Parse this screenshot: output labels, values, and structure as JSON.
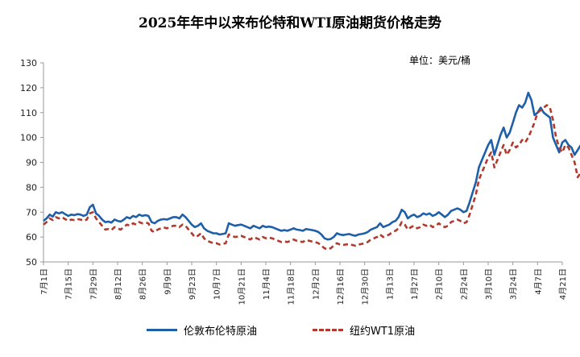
{
  "chart_data": {
    "type": "line",
    "title": "2025年年中以来布伦特和WTI原油期货价格走势",
    "unit_label": "单位：美元/桶",
    "ylim": [
      50,
      130
    ],
    "yticks": [
      50,
      60,
      70,
      80,
      90,
      100,
      110,
      120,
      130
    ],
    "grid": false,
    "legend_position": "bottom",
    "x_tick_labels": [
      "7月1日",
      "7月15日",
      "7月29日",
      "8月12日",
      "8月26日",
      "9月9日",
      "9月23日",
      "10月7日",
      "10月21日",
      "11月4日",
      "11月18日",
      "12月2日",
      "12月16日",
      "12月30日",
      "1月13日",
      "1月27日",
      "2月10日",
      "2月24日",
      "3月10日",
      "3月24日",
      "4月7日",
      "4月21日"
    ],
    "series": [
      {
        "name": "伦敦布伦特原油",
        "color": "#1f5fa8",
        "style": "solid",
        "values": [
          66.5,
          67.5,
          69,
          68.2,
          70,
          69.5,
          70,
          69.2,
          68.5,
          69,
          68.8,
          69.2,
          69,
          68.5,
          69,
          72,
          73,
          69.5,
          68.5,
          67,
          66,
          66.2,
          65.8,
          67,
          66.5,
          66.2,
          67,
          68,
          67.5,
          68.5,
          68,
          69,
          68.5,
          68.8,
          68.5,
          66,
          65.5,
          66.5,
          67,
          67.2,
          67,
          67.5,
          68,
          68,
          67.5,
          69,
          68,
          66.5,
          65,
          64,
          64.5,
          65.5,
          63.5,
          62.5,
          62,
          61.5,
          61.5,
          61,
          61.2,
          61.5,
          65.5,
          65,
          64.5,
          64.8,
          65,
          64.5,
          64,
          63.5,
          64.5,
          64,
          63.5,
          64.5,
          64,
          64.2,
          64,
          63.5,
          63,
          62.5,
          62.8,
          62.5,
          63,
          63.5,
          63,
          62.8,
          62.5,
          63.2,
          63,
          62.8,
          62.5,
          62,
          61,
          59.5,
          59,
          59.2,
          60,
          61.5,
          61,
          60.8,
          61,
          61.2,
          60.8,
          60.5,
          61,
          61.2,
          61.5,
          62,
          63,
          63.5,
          64,
          65.5,
          64,
          64.5,
          65,
          66,
          66.5,
          68,
          71,
          70,
          67.5,
          68.5,
          69,
          68,
          68.5,
          69.5,
          69,
          69.5,
          68.5,
          69,
          70,
          69,
          68,
          69,
          70.5,
          71,
          71.5,
          71,
          70,
          70.5,
          74,
          78,
          82,
          88,
          91,
          94,
          97,
          99,
          93,
          97,
          101,
          104,
          100,
          102,
          106,
          110,
          113,
          112,
          114,
          118,
          115,
          109,
          110,
          112,
          110,
          109,
          108,
          100,
          97,
          94,
          98,
          99,
          97,
          96,
          93,
          95,
          97
        ],
        "stride": 0.5
      },
      {
        "name": "纽约WT1原油",
        "color": "#b03a2e",
        "style": "dashed",
        "values": [
          65,
          66,
          67.5,
          66.8,
          68,
          67.5,
          68,
          67.2,
          66.5,
          67,
          66.8,
          67.2,
          67,
          66.5,
          67,
          69.5,
          70,
          67.5,
          66,
          64.5,
          63,
          63.2,
          62.8,
          64,
          63.5,
          63,
          64,
          65,
          64.5,
          65.5,
          65,
          66,
          65.5,
          65.8,
          65.5,
          62.5,
          62,
          63,
          63.5,
          63.8,
          63.5,
          64,
          64.5,
          64.5,
          64,
          65,
          64.5,
          63,
          61.5,
          60,
          60.5,
          61.5,
          59.5,
          58.5,
          58,
          57.5,
          57.5,
          57,
          57.2,
          57.5,
          61,
          60.5,
          60,
          60.2,
          60.5,
          60,
          59.5,
          59,
          60,
          59.5,
          59,
          60,
          59.5,
          59.8,
          59.5,
          59,
          58.5,
          58,
          58.2,
          58,
          58.5,
          59,
          58.5,
          58.2,
          58,
          58.8,
          58.5,
          58.2,
          58,
          57.5,
          56.5,
          55.5,
          55,
          55.5,
          56.5,
          57.5,
          57,
          56.8,
          57,
          57.2,
          56.8,
          56.5,
          57,
          57.2,
          57.5,
          58,
          59,
          59.5,
          60,
          61,
          60,
          60.5,
          61,
          62,
          62.5,
          63.5,
          66,
          65,
          63,
          64,
          64.5,
          63.5,
          64,
          65,
          64.5,
          65,
          64,
          64.5,
          65.5,
          64.5,
          64,
          64.5,
          66,
          66.5,
          67,
          66.5,
          65.5,
          66,
          69,
          73,
          77,
          83,
          86,
          89,
          92,
          94,
          88,
          91,
          94,
          97,
          93,
          95,
          98,
          96,
          97,
          99,
          98,
          100,
          103,
          106,
          110,
          111,
          112,
          113,
          112,
          107,
          100,
          96,
          94,
          97,
          96,
          93,
          90,
          84,
          86,
          89
        ],
        "stride": 0.5
      }
    ]
  }
}
